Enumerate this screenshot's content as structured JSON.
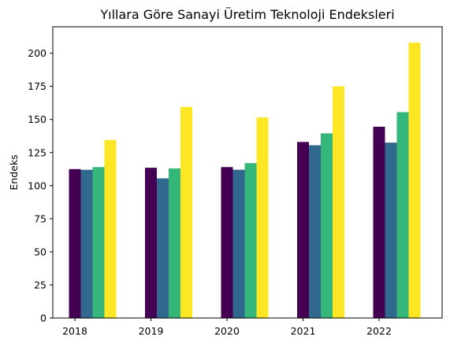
{
  "chart_data": {
    "type": "bar",
    "title": "Yıllara Göre Sanayi Üretim Teknoloji Endeksleri",
    "xlabel": "",
    "ylabel": "Endeks",
    "categories": [
      "2018",
      "2019",
      "2020",
      "2021",
      "2022"
    ],
    "ylim": [
      0,
      220
    ],
    "yticks": [
      0,
      25,
      50,
      75,
      100,
      125,
      150,
      175,
      200
    ],
    "grid": false,
    "legend": "none",
    "series": [
      {
        "values": [
          112.5,
          113.5,
          114.0,
          133.0,
          144.5
        ],
        "color": "#440154"
      },
      {
        "values": [
          112.0,
          105.5,
          112.0,
          130.5,
          132.5
        ],
        "color": "#31688e"
      },
      {
        "values": [
          114.0,
          113.0,
          117.0,
          139.5,
          155.5
        ],
        "color": "#35b779"
      },
      {
        "values": [
          134.5,
          159.5,
          151.5,
          175.0,
          208.0
        ],
        "color": "#fde725"
      }
    ]
  }
}
